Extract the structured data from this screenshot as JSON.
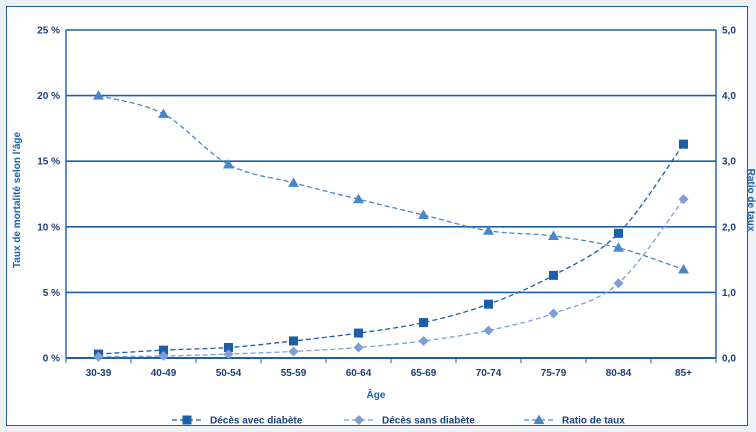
{
  "chart_data": {
    "type": "line",
    "categories": [
      "30-39",
      "40-49",
      "50-54",
      "55-59",
      "60-64",
      "65-69",
      "70-74",
      "75-79",
      "80-84",
      "85+"
    ],
    "xlabel": "Âge",
    "ylabel_left": "Taux de mortalité selon l'âge",
    "ylabel_right": "Ratio de taux",
    "y_left": {
      "lim": [
        0,
        25
      ],
      "ticks": [
        "0 %",
        "5 %",
        "10 %",
        "15 %",
        "20 %",
        "25 %"
      ],
      "tick_values": [
        0,
        5,
        10,
        15,
        20,
        25
      ]
    },
    "y_right": {
      "lim": [
        0,
        5
      ],
      "ticks": [
        "0,0",
        "1,0",
        "2,0",
        "3,0",
        "4,0",
        "5,0"
      ],
      "tick_values": [
        0,
        1,
        2,
        3,
        4,
        5
      ]
    },
    "grid": true,
    "legend_position": "bottom",
    "series": [
      {
        "name": "Décès avec diabète",
        "axis": "left",
        "marker": "square",
        "color": "#1a5fa8",
        "values": [
          0.3,
          0.6,
          0.8,
          1.3,
          1.9,
          2.7,
          4.1,
          6.3,
          9.5,
          16.3
        ]
      },
      {
        "name": "Décès sans diabète",
        "axis": "left",
        "marker": "diamond",
        "color": "#7f9fd4",
        "values": [
          0.1,
          0.15,
          0.3,
          0.5,
          0.8,
          1.3,
          2.1,
          3.4,
          5.7,
          12.1
        ]
      },
      {
        "name": "Ratio de taux",
        "axis": "right",
        "marker": "triangle",
        "color": "#4a86c8",
        "values": [
          4.0,
          3.72,
          2.95,
          2.67,
          2.42,
          2.18,
          1.94,
          1.86,
          1.68,
          1.35
        ]
      }
    ]
  }
}
